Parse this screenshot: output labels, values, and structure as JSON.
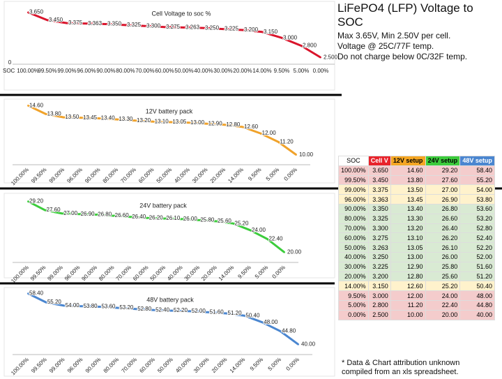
{
  "chart_data": [
    {
      "type": "line",
      "title": "Cell Voltage to soc %",
      "x_label": "SOC",
      "axis_origin_label": "0",
      "categories": [
        "100.00%",
        "99.50%",
        "99.00%",
        "96.00%",
        "90.00%",
        "80.00%",
        "70.00%",
        "60.00%",
        "50.00%",
        "40.00%",
        "30.00%",
        "20.00%",
        "14.00%",
        "9.50%",
        "5.00%",
        "0.00%"
      ],
      "values": [
        3.65,
        3.45,
        3.375,
        3.363,
        3.35,
        3.325,
        3.3,
        3.275,
        3.263,
        3.25,
        3.225,
        3.2,
        3.15,
        3.0,
        2.8,
        2.5
      ],
      "value_labels": [
        "3.650",
        "3.450",
        "3.375",
        "3.363",
        "3.350",
        "3.325",
        "3.300",
        "3.275",
        "3.263",
        "3.250",
        "3.225",
        "3.200",
        "3.150",
        "3.000",
        "2.800",
        "2.500"
      ],
      "color": "#d9142b",
      "ylim": [
        2.4,
        3.75
      ]
    },
    {
      "type": "line",
      "title": "12V battery pack",
      "categories": [
        "100.00%",
        "99.50%",
        "99.00%",
        "96.00%",
        "90.00%",
        "80.00%",
        "70.00%",
        "60.00%",
        "50.00%",
        "40.00%",
        "30.00%",
        "20.00%",
        "14.00%",
        "9.50%",
        "5.00%",
        "0.00%"
      ],
      "values": [
        14.6,
        13.8,
        13.5,
        13.45,
        13.4,
        13.3,
        13.2,
        13.1,
        13.05,
        13.0,
        12.9,
        12.8,
        12.6,
        12.0,
        11.2,
        10.0
      ],
      "value_labels": [
        "14.60",
        "13.80",
        "13.50",
        "13.45",
        "13.40",
        "13.30",
        "13.20",
        "13.10",
        "13.05",
        "13.00",
        "12.90",
        "12.80",
        "12.60",
        "12.00",
        "11.20",
        "10.00"
      ],
      "color": "#f0a22a",
      "ylim": [
        9.6,
        15.0
      ]
    },
    {
      "type": "line",
      "title": "24V battery pack",
      "categories": [
        "100.00%",
        "99.50%",
        "99.00%",
        "96.00%",
        "90.00%",
        "80.00%",
        "70.00%",
        "60.00%",
        "50.00%",
        "40.00%",
        "30.00%",
        "20.00%",
        "14.00%",
        "9.50%",
        "5.00%",
        "0.00%"
      ],
      "values": [
        29.2,
        27.6,
        27.0,
        26.9,
        26.8,
        26.6,
        26.4,
        26.2,
        26.1,
        26.0,
        25.8,
        25.6,
        25.2,
        24.0,
        22.4,
        20.0
      ],
      "value_labels": [
        "29.20",
        "27.60",
        "27.00",
        "26.90",
        "26.80",
        "26.60",
        "26.40",
        "26.20",
        "26.10",
        "26.00",
        "25.80",
        "25.60",
        "25.20",
        "24.00",
        "22.40",
        "20.00"
      ],
      "color": "#3ccc3c",
      "ylim": [
        19.2,
        30.0
      ]
    },
    {
      "type": "line",
      "title": "48V battery pack",
      "categories": [
        "100.00%",
        "99.50%",
        "99.00%",
        "96.00%",
        "90.00%",
        "80.00%",
        "70.00%",
        "60.00%",
        "50.00%",
        "40.00%",
        "30.00%",
        "20.00%",
        "14.00%",
        "9.50%",
        "5.00%",
        "0.00%"
      ],
      "values": [
        58.4,
        55.2,
        54.0,
        53.8,
        53.6,
        53.2,
        52.8,
        52.4,
        52.2,
        52.0,
        51.6,
        51.2,
        50.4,
        48.0,
        44.8,
        40.0
      ],
      "value_labels": [
        "58.40",
        "55.20",
        "54.00",
        "53.80",
        "53.60",
        "53.20",
        "52.80",
        "52.40",
        "52.20",
        "52.00",
        "51.60",
        "51.20",
        "50.40",
        "48.00",
        "44.80",
        "40.00"
      ],
      "color": "#4a86d0",
      "ylim": [
        38.4,
        60.0
      ]
    }
  ],
  "header": {
    "title": "LiFePO4 (LFP) Voltage to SOC",
    "lines": [
      "Max 3.65V, Min 2.50V per cell.",
      "Voltage @ 25C/77F temp.",
      "Do not charge below 0C/32F temp."
    ]
  },
  "table": {
    "header": [
      "SOC",
      "Cell V",
      "12V setup",
      "24V setup",
      "48V setup"
    ],
    "rows": [
      [
        "100.00%",
        "3.650",
        "14.60",
        "29.20",
        "58.40"
      ],
      [
        "99.50%",
        "3.450",
        "13.80",
        "27.60",
        "55.20"
      ],
      [
        "99.00%",
        "3.375",
        "13.50",
        "27.00",
        "54.00"
      ],
      [
        "96.00%",
        "3.363",
        "13.45",
        "26.90",
        "53.80"
      ],
      [
        "90.00%",
        "3.350",
        "13.40",
        "26.80",
        "53.60"
      ],
      [
        "80.00%",
        "3.325",
        "13.30",
        "26.60",
        "53.20"
      ],
      [
        "70.00%",
        "3.300",
        "13.20",
        "26.40",
        "52.80"
      ],
      [
        "60.00%",
        "3.275",
        "13.10",
        "26.20",
        "52.40"
      ],
      [
        "50.00%",
        "3.263",
        "13.05",
        "26.10",
        "52.20"
      ],
      [
        "40.00%",
        "3.250",
        "13.00",
        "26.00",
        "52.00"
      ],
      [
        "30.00%",
        "3.225",
        "12.90",
        "25.80",
        "51.60"
      ],
      [
        "20.00%",
        "3.200",
        "12.80",
        "25.60",
        "51.20"
      ],
      [
        "14.00%",
        "3.150",
        "12.60",
        "25.20",
        "50.40"
      ],
      [
        "9.50%",
        "3.000",
        "12.00",
        "24.00",
        "48.00"
      ],
      [
        "5.00%",
        "2.800",
        "11.20",
        "22.40",
        "44.80"
      ],
      [
        "0.00%",
        "2.500",
        "10.00",
        "20.00",
        "40.00"
      ]
    ]
  },
  "footnote": [
    "* Data & Chart attribution unknown",
    "compiled from an xls spreadsheet."
  ]
}
